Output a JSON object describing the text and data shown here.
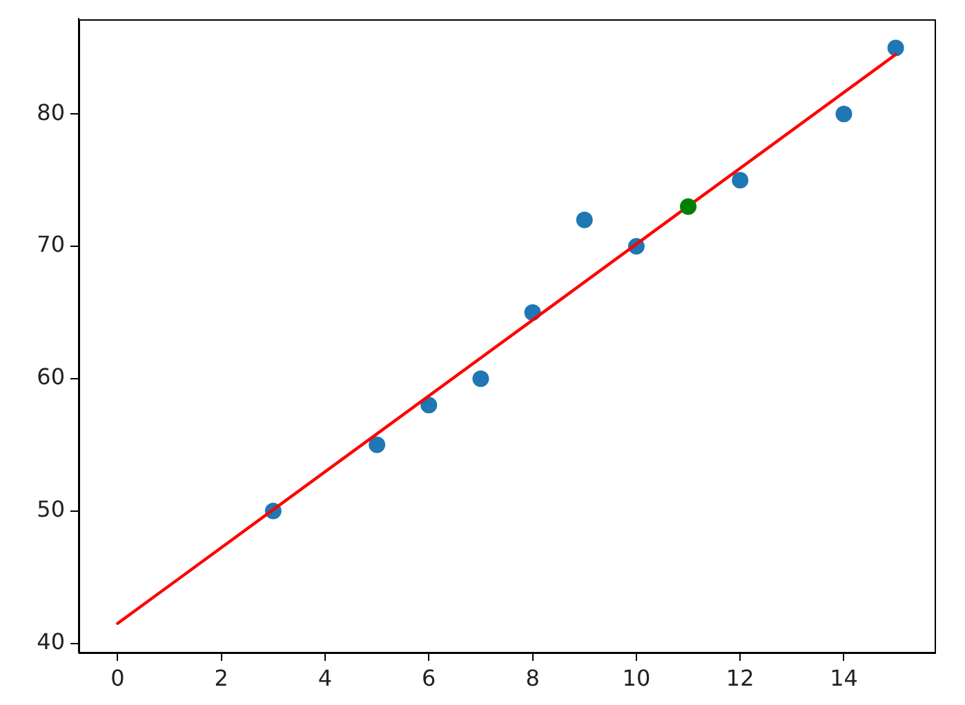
{
  "chart_data": {
    "type": "scatter",
    "xlim": [
      -0.75,
      15.75
    ],
    "ylim": [
      39.3,
      87.2
    ],
    "xticks": [
      0,
      2,
      4,
      6,
      8,
      10,
      12,
      14
    ],
    "yticks": [
      40,
      50,
      60,
      70,
      80
    ],
    "grid": false,
    "legend": false,
    "marker": "circle",
    "series": [
      {
        "color": "#1f77b4",
        "x": [
          3,
          5,
          6,
          7,
          8,
          9,
          10,
          12,
          14,
          15
        ],
        "values": [
          50,
          55,
          58,
          60,
          65,
          72,
          70,
          75,
          80,
          85
        ]
      },
      {
        "type": "line",
        "color": "#ff0000",
        "x": [
          0,
          15
        ],
        "values": [
          41.5,
          84.5
        ],
        "marker": "none",
        "line_style": "solid"
      },
      {
        "color": "#008000",
        "x": [
          11
        ],
        "values": [
          73
        ]
      }
    ]
  }
}
